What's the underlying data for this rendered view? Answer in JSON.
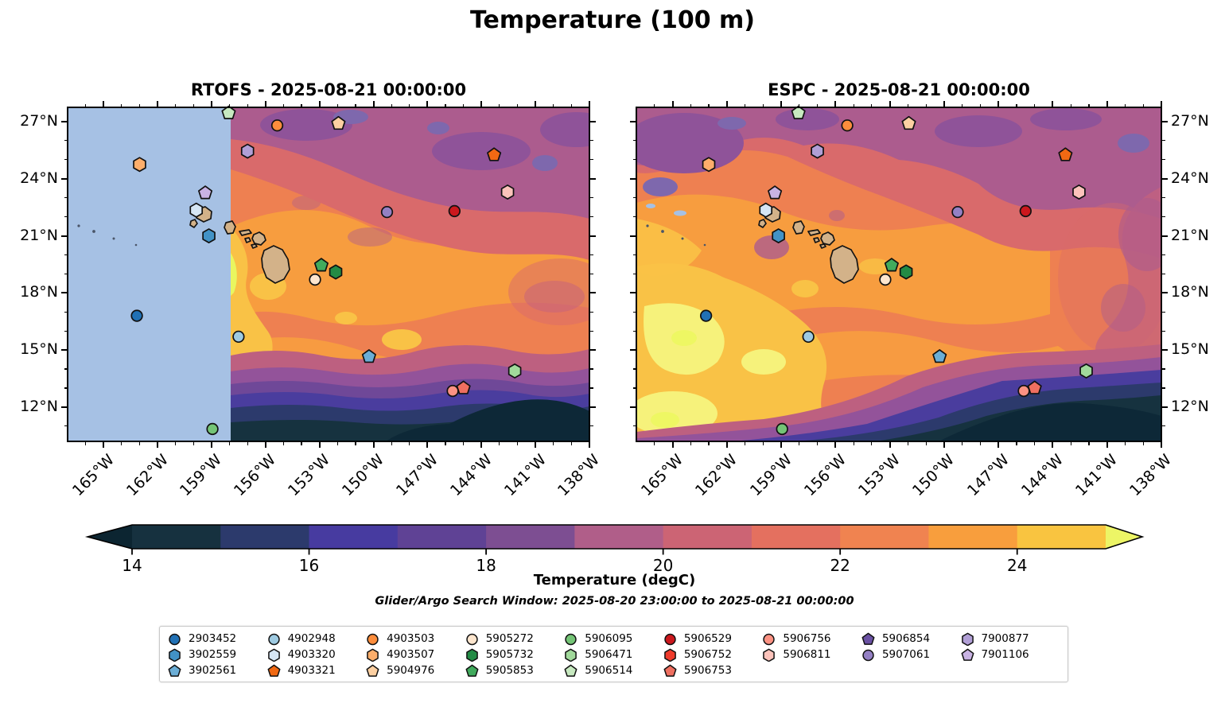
{
  "title": "Temperature (100 m)",
  "panels": [
    {
      "key": "rtofs",
      "title": "RTOFS - 2025-08-21 00:00:00",
      "lat_label_side": "left"
    },
    {
      "key": "espc",
      "title": "ESPC - 2025-08-21 00:00:00",
      "lat_label_side": "right"
    }
  ],
  "map": {
    "lon_min": -167.0,
    "lon_max": -138.0,
    "lat_min": 10.2,
    "lat_max": 27.75,
    "lon_ticks": [
      {
        "v": -165,
        "label": "165°W"
      },
      {
        "v": -162,
        "label": "162°W"
      },
      {
        "v": -159,
        "label": "159°W"
      },
      {
        "v": -156,
        "label": "156°W"
      },
      {
        "v": -153,
        "label": "153°W"
      },
      {
        "v": -150,
        "label": "150°W"
      },
      {
        "v": -147,
        "label": "147°W"
      },
      {
        "v": -144,
        "label": "144°W"
      },
      {
        "v": -141,
        "label": "141°W"
      },
      {
        "v": -138,
        "label": "138°W"
      }
    ],
    "lat_ticks": [
      {
        "v": 27,
        "label": "27°N"
      },
      {
        "v": 24,
        "label": "24°N"
      },
      {
        "v": 21,
        "label": "21°N"
      },
      {
        "v": 18,
        "label": "18°N"
      },
      {
        "v": 15,
        "label": "15°N"
      },
      {
        "v": 12,
        "label": "12°N"
      }
    ],
    "minor_lon": [
      -166,
      -164,
      -163,
      -161,
      -160,
      -158,
      -157,
      -155,
      -154,
      -152,
      -151,
      -149,
      -148,
      -146,
      -145,
      -143,
      -142,
      -140,
      -139
    ],
    "minor_lat": [
      11,
      13,
      14,
      16,
      17,
      19,
      20,
      22,
      23,
      25,
      26
    ]
  },
  "colorbar": {
    "label": "Temperature (degC)",
    "min": 14,
    "max": 25,
    "tick_values": [
      14,
      16,
      18,
      20,
      22,
      24
    ],
    "tick_labels": [
      "14",
      "16",
      "18",
      "20",
      "22",
      "24"
    ],
    "levels": [
      {
        "from": 14,
        "to": 15,
        "color": "#16313f"
      },
      {
        "from": 15,
        "to": 16,
        "color": "#2c3a6c"
      },
      {
        "from": 16,
        "to": 17,
        "color": "#473ba0"
      },
      {
        "from": 17,
        "to": 18,
        "color": "#5f4295"
      },
      {
        "from": 18,
        "to": 19,
        "color": "#7d4e92"
      },
      {
        "from": 19,
        "to": 20,
        "color": "#b05e89"
      },
      {
        "from": 20,
        "to": 21,
        "color": "#cc6474"
      },
      {
        "from": 21,
        "to": 22,
        "color": "#e4705f"
      },
      {
        "from": 22,
        "to": 23,
        "color": "#f08350"
      },
      {
        "from": 23,
        "to": 24,
        "color": "#f89e3d"
      },
      {
        "from": 24,
        "to": 25,
        "color": "#f9c440"
      }
    ],
    "under_color": "#0c2531",
    "over_color": "#edf566"
  },
  "search_window": "Glider/Argo Search Window: 2025-08-20 23:00:00 to 2025-08-21 00:00:00",
  "floats": [
    {
      "id": "2903452",
      "marker": "circle",
      "color": "#2171b5",
      "lon": -163.15,
      "lat": 16.8
    },
    {
      "id": "3902559",
      "marker": "hexagon",
      "color": "#4292c6",
      "lon": -159.15,
      "lat": 21.0
    },
    {
      "id": "3902561",
      "marker": "pentagon",
      "color": "#6baed6",
      "lon": -150.25,
      "lat": 14.65
    },
    {
      "id": "4902948",
      "marker": "circle",
      "color": "#9ecae1",
      "lon": -157.5,
      "lat": 15.7
    },
    {
      "id": "4903320",
      "marker": "hexagon",
      "color": "#d6e6f4",
      "lon": -159.85,
      "lat": 22.35
    },
    {
      "id": "4903321",
      "marker": "pentagon",
      "color": "#f16913",
      "lon": -143.3,
      "lat": 25.25
    },
    {
      "id": "4903503",
      "marker": "circle",
      "color": "#fd8d3c",
      "lon": -155.35,
      "lat": 26.8
    },
    {
      "id": "4903507",
      "marker": "hexagon",
      "color": "#fdae6b",
      "lon": -163.0,
      "lat": 24.75
    },
    {
      "id": "5904976",
      "marker": "pentagon",
      "color": "#fdd0a2",
      "lon": -151.95,
      "lat": 26.9
    },
    {
      "id": "5905272",
      "marker": "circle",
      "color": "#fee6ce",
      "lon": -153.25,
      "lat": 18.7
    },
    {
      "id": "5905732",
      "marker": "hexagon",
      "color": "#238b45",
      "lon": -152.1,
      "lat": 19.1
    },
    {
      "id": "5905853",
      "marker": "pentagon",
      "color": "#41ab5d",
      "lon": -152.9,
      "lat": 19.45
    },
    {
      "id": "5906095",
      "marker": "circle",
      "color": "#74c476",
      "lon": -158.95,
      "lat": 10.85
    },
    {
      "id": "5906471",
      "marker": "hexagon",
      "color": "#a1d99b",
      "lon": -142.15,
      "lat": 13.9
    },
    {
      "id": "5906514",
      "marker": "pentagon",
      "color": "#c7e9c0",
      "lon": -158.05,
      "lat": 27.45
    },
    {
      "id": "5906529",
      "marker": "circle",
      "color": "#cb181d",
      "lon": -145.5,
      "lat": 22.3
    },
    {
      "id": "5906752",
      "marker": "hexagon",
      "color": "#ef3b2c",
      "lon": null,
      "lat": null
    },
    {
      "id": "5906753",
      "marker": "pentagon",
      "color": "#ef6f60",
      "lon": -145.0,
      "lat": 13.0
    },
    {
      "id": "5906756",
      "marker": "circle",
      "color": "#fc9283",
      "lon": -145.6,
      "lat": 12.85
    },
    {
      "id": "5906811",
      "marker": "hexagon",
      "color": "#fcc3bb",
      "lon": -142.55,
      "lat": 23.3
    },
    {
      "id": "5906854",
      "marker": "pentagon",
      "color": "#6a51a3",
      "lon": null,
      "lat": null
    },
    {
      "id": "5907061",
      "marker": "circle",
      "color": "#9480c4",
      "lon": -149.25,
      "lat": 22.25
    },
    {
      "id": "7900877",
      "marker": "hexagon",
      "color": "#b19fd6",
      "lon": -157.0,
      "lat": 25.45
    },
    {
      "id": "7901106",
      "marker": "pentagon",
      "color": "#c9b3e4",
      "lon": -159.35,
      "lat": 23.25
    }
  ],
  "legend": {
    "columns": [
      [
        "2903452",
        "3902559",
        "3902561"
      ],
      [
        "4902948",
        "4903320",
        "4903321"
      ],
      [
        "4903503",
        "4903507",
        "5904976"
      ],
      [
        "5905272",
        "5905732",
        "5905853"
      ],
      [
        "5906095",
        "5906471",
        "5906514"
      ],
      [
        "5906529",
        "5906752",
        "5906753"
      ],
      [
        "5906756",
        "5906811"
      ],
      [
        "5906854",
        "5907061"
      ],
      [
        "7900877",
        "7901106"
      ]
    ]
  },
  "chart_data": [
    {
      "type": "heatmap",
      "name": "rtofs-temperature-field",
      "title": "RTOFS - 2025-08-21 00:00:00",
      "xlabel": "Longitude",
      "ylabel": "Latitude",
      "x_range": [
        -167.0,
        -138.0
      ],
      "y_range": [
        10.2,
        27.75
      ],
      "value_label": "Temperature (degC)",
      "value_range": [
        14,
        25
      ],
      "contour_interval_degC": 1,
      "masked_region_lon_west_of": -157.9,
      "pattern": "warm orange (21-24 degC) core around Hawaii with >24 degC patches, mauve/purple band (18-20 degC) along northern edge, cold band (<16 degC) along southern edge"
    },
    {
      "type": "heatmap",
      "name": "espc-temperature-field",
      "title": "ESPC - 2025-08-21 00:00:00",
      "xlabel": "Longitude",
      "ylabel": "Latitude",
      "x_range": [
        -167.0,
        -138.0
      ],
      "y_range": [
        10.2,
        27.75
      ],
      "value_label": "Temperature (degC)",
      "value_range": [
        14,
        25
      ],
      "contour_interval_degC": 1,
      "pattern": "large >24 degC warm pool in the southwest, orange core elsewhere, purple band (18-20 degC) along northern edge, cold band (<16 degC) along southeastern edge"
    },
    {
      "type": "scatter",
      "name": "glider-argo-float-positions",
      "points": [
        {
          "id": "2903452",
          "lon": -163.15,
          "lat": 16.8
        },
        {
          "id": "3902559",
          "lon": -159.15,
          "lat": 21.0
        },
        {
          "id": "3902561",
          "lon": -150.25,
          "lat": 14.65
        },
        {
          "id": "4902948",
          "lon": -157.5,
          "lat": 15.7
        },
        {
          "id": "4903320",
          "lon": -159.85,
          "lat": 22.35
        },
        {
          "id": "4903321",
          "lon": -143.3,
          "lat": 25.25
        },
        {
          "id": "4903503",
          "lon": -155.35,
          "lat": 26.8
        },
        {
          "id": "4903507",
          "lon": -163.0,
          "lat": 24.75
        },
        {
          "id": "5904976",
          "lon": -151.95,
          "lat": 26.9
        },
        {
          "id": "5905272",
          "lon": -153.25,
          "lat": 18.7
        },
        {
          "id": "5905732",
          "lon": -152.1,
          "lat": 19.1
        },
        {
          "id": "5905853",
          "lon": -152.9,
          "lat": 19.45
        },
        {
          "id": "5906095",
          "lon": -158.95,
          "lat": 10.85
        },
        {
          "id": "5906471",
          "lon": -142.15,
          "lat": 13.9
        },
        {
          "id": "5906514",
          "lon": -158.05,
          "lat": 27.45
        },
        {
          "id": "5906529",
          "lon": -145.5,
          "lat": 22.3
        },
        {
          "id": "5906753",
          "lon": -145.0,
          "lat": 13.0
        },
        {
          "id": "5906756",
          "lon": -145.6,
          "lat": 12.85
        },
        {
          "id": "5906811",
          "lon": -142.55,
          "lat": 23.3
        },
        {
          "id": "5907061",
          "lon": -149.25,
          "lat": 22.25
        },
        {
          "id": "7900877",
          "lon": -157.0,
          "lat": 25.45
        },
        {
          "id": "7901106",
          "lon": -159.35,
          "lat": 23.25
        }
      ]
    }
  ]
}
